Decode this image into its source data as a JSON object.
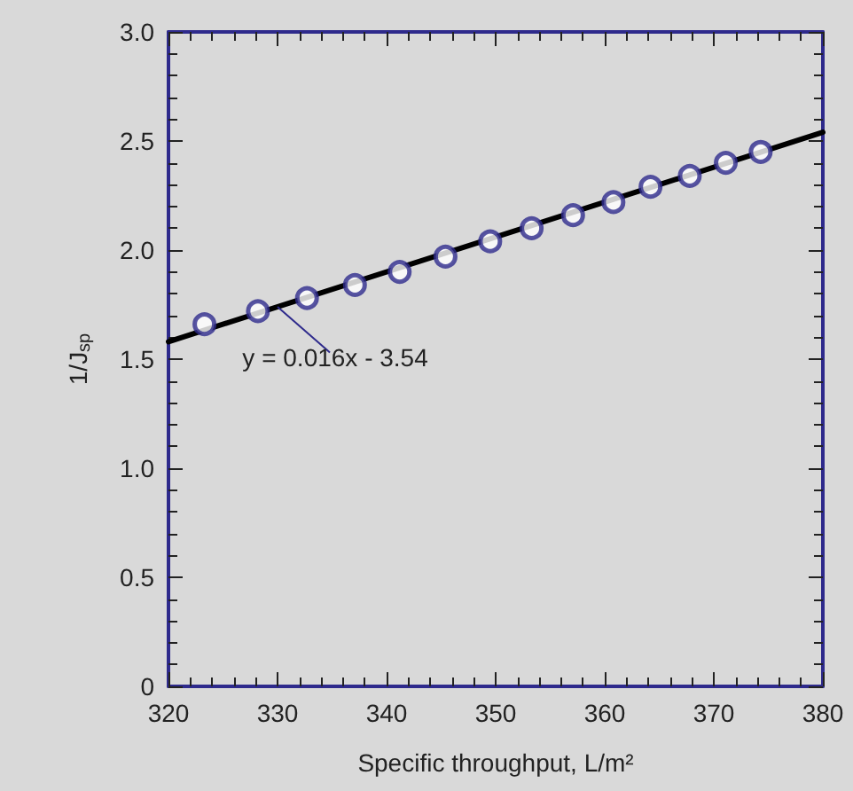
{
  "chart_data": {
    "type": "scatter",
    "xlabel": "Specific throughput, L/m²",
    "ylabel": "1/J$_{sp}$",
    "series": [
      {
        "color": "#2e2a8c",
        "marker": "circle",
        "x": [
          323.3,
          328.2,
          332.7,
          337.1,
          341.2,
          345.4,
          349.5,
          353.3,
          357.1,
          360.8,
          364.2,
          367.8,
          371.1,
          374.3
        ],
        "values": [
          1.66,
          1.72,
          1.78,
          1.84,
          1.9,
          1.97,
          2.04,
          2.1,
          2.16,
          2.22,
          2.29,
          2.34,
          2.4,
          2.45
        ]
      },
      {
        "type": "line",
        "color": "#000000",
        "marker": "none",
        "line_style": "solid",
        "x": [
          320,
          380
        ],
        "values": [
          1.58,
          2.54
        ]
      }
    ],
    "annotations": [
      {
        "text": "y = 0.016x - 3.54",
        "x": 330,
        "y": 1.74
      }
    ],
    "xlim": [
      320,
      380
    ],
    "xticks": [
      320,
      330,
      340,
      350,
      360,
      370,
      380
    ],
    "ylim": [
      0,
      3
    ],
    "yticks": [
      {
        "value": 0,
        "label": "0"
      },
      {
        "value": 0.5,
        "label": "0.5"
      },
      {
        "value": 1,
        "label": "1.0"
      },
      {
        "value": 1.5,
        "label": "1.5"
      },
      {
        "value": 2,
        "label": "2.0"
      },
      {
        "value": 2.5,
        "label": "2.5"
      },
      {
        "value": 3,
        "label": "3.0"
      }
    ],
    "grid": false
  }
}
